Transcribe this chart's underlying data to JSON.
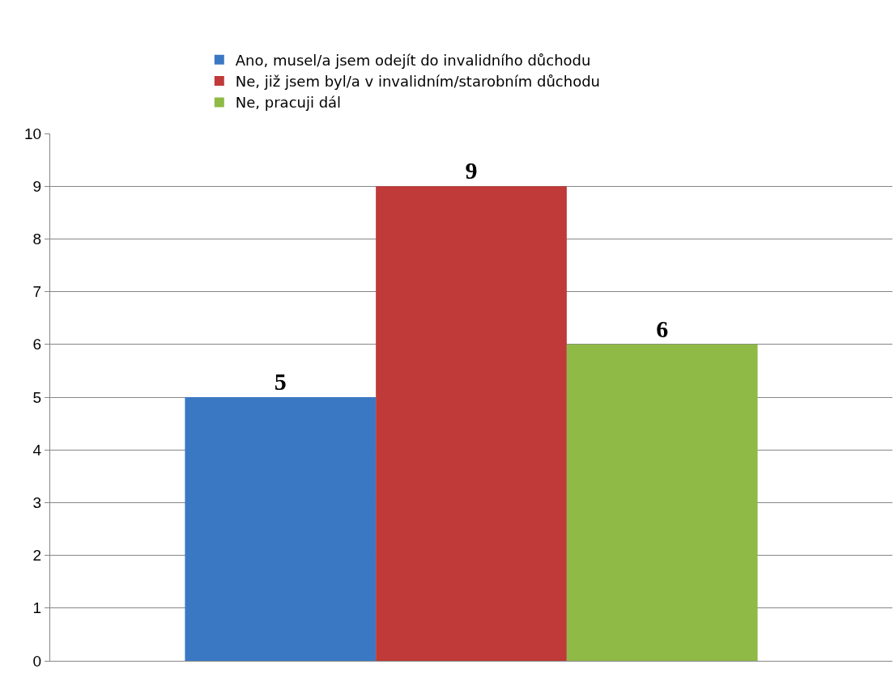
{
  "chart_data": {
    "type": "bar",
    "categories": [
      null
    ],
    "series": [
      {
        "name": "Ano, musel/a jsem odejít do invalidního důchodu",
        "color": "#3b78c3",
        "values": [
          5
        ]
      },
      {
        "name": "Ne, již jsem byl/a v invalidním/starobním důchodu",
        "color": "#bf3a38",
        "values": [
          9
        ]
      },
      {
        "name": "Ne, pracuji dál",
        "color": "#8fba45",
        "values": [
          6
        ]
      }
    ],
    "ylim": [
      0,
      10
    ],
    "yticks": [
      0,
      1,
      2,
      3,
      4,
      5,
      6,
      7,
      8,
      9,
      10
    ],
    "grid": "y",
    "legend": "top",
    "data_labels": true
  }
}
